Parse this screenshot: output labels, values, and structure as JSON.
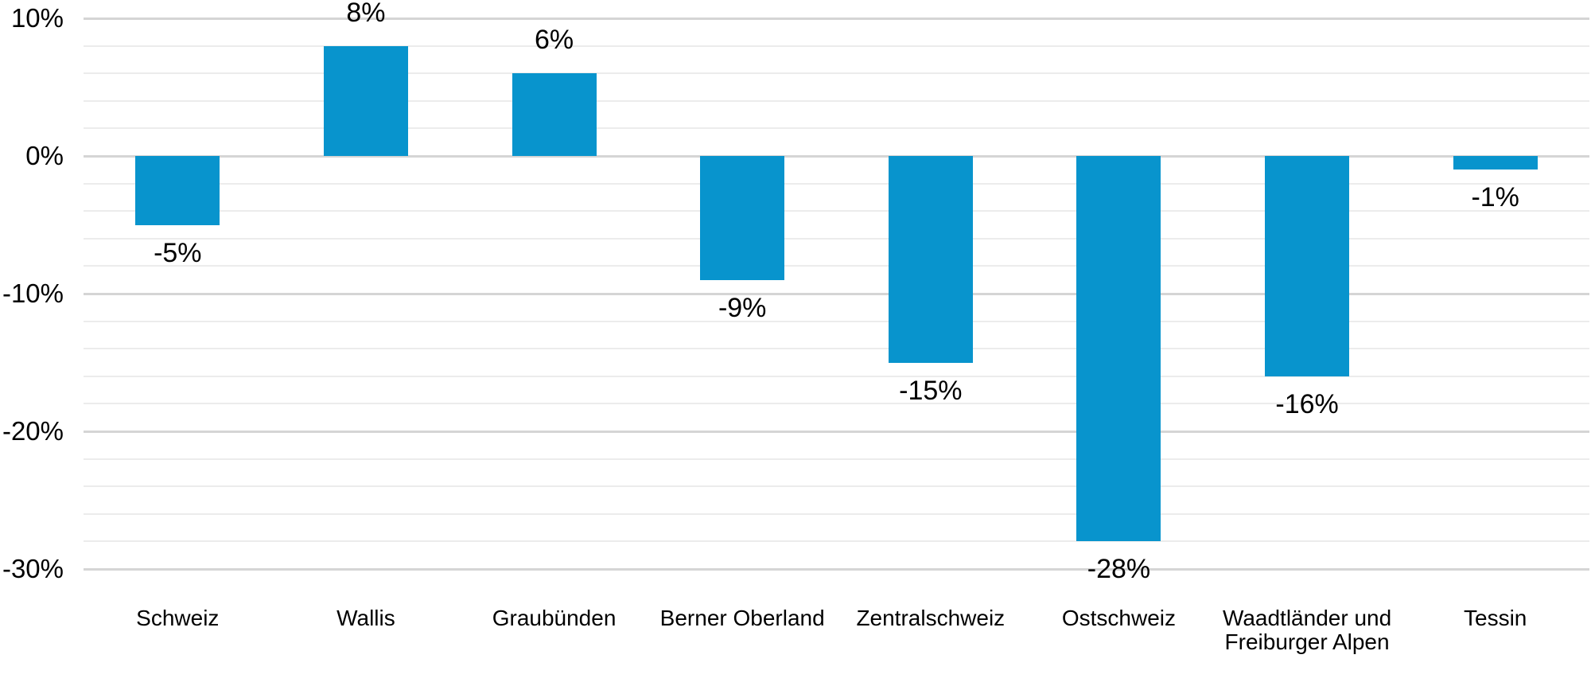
{
  "chart_data": {
    "type": "bar",
    "title": "",
    "xlabel": "",
    "ylabel": "",
    "unit": "%",
    "categories": [
      "Schweiz",
      "Wallis",
      "Graubünden",
      "Berner Oberland",
      "Zentralschweiz",
      "Ostschweiz",
      "Waadtländer und Freiburger Alpen",
      "Tessin"
    ],
    "values": [
      -5,
      8,
      6,
      -9,
      -15,
      -28,
      -16,
      -1
    ],
    "data_labels": [
      "-5%",
      "8%",
      "6%",
      "-9%",
      "-15%",
      "-28%",
      "-16%",
      "-1%"
    ],
    "ylim": [
      -30,
      10
    ],
    "y_ticks": [
      {
        "value": 10,
        "label": "10%"
      },
      {
        "value": 0,
        "label": "0%"
      },
      {
        "value": -10,
        "label": "-10%"
      },
      {
        "value": -20,
        "label": "-20%"
      },
      {
        "value": -30,
        "label": "-30%"
      }
    ],
    "gridlines": {
      "visible": true,
      "minor_step": 2,
      "major_step": 10
    },
    "legend": "none",
    "bar_color": "#0894cd",
    "text_color": "#000000"
  }
}
